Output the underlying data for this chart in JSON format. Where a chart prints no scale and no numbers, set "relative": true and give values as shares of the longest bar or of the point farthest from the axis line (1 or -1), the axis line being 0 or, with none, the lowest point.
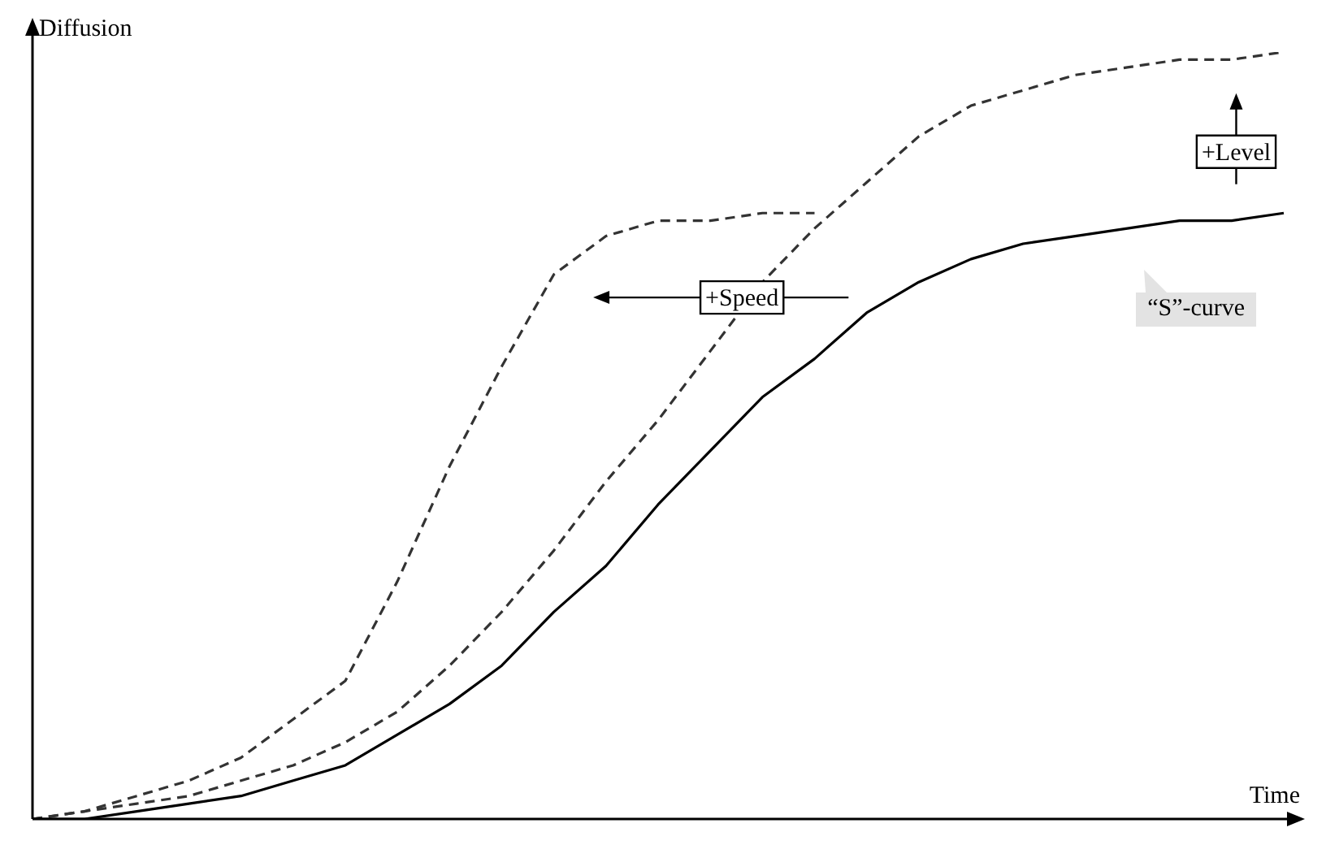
{
  "chart_data": {
    "type": "line",
    "relative": true,
    "xlabel": "Time",
    "ylabel": "Diffusion",
    "categories": [
      null,
      null,
      null,
      null,
      null,
      null,
      null,
      null,
      null,
      null,
      null,
      null,
      null,
      null,
      null,
      null,
      null,
      null,
      null,
      null,
      null,
      null,
      null,
      null,
      null
    ],
    "legend": false,
    "marker": "none",
    "series": [
      {
        "color": "#000000",
        "line_style": "solid",
        "values": [
          0,
          0,
          0.01,
          0.02,
          0.03,
          0.05,
          0.07,
          0.11,
          0.15,
          0.2,
          0.27,
          0.33,
          0.41,
          0.48,
          0.55,
          0.6,
          0.66,
          0.7,
          0.73,
          0.75,
          0.76,
          0.77,
          0.78,
          0.78,
          0.79
        ]
      },
      {
        "color": "#333333",
        "line_style": "dashed",
        "values": [
          0,
          0.01,
          0.03,
          0.05,
          0.08,
          0.13,
          0.18,
          0.31,
          0.46,
          0.59,
          0.71,
          0.76,
          0.78,
          0.78,
          0.79,
          0.79,
          null,
          null,
          null,
          null,
          null,
          null,
          null,
          null,
          null
        ]
      },
      {
        "color": "#333333",
        "line_style": "dashed",
        "values": [
          0,
          0.01,
          0.02,
          0.03,
          0.05,
          0.07,
          0.1,
          0.14,
          0.2,
          0.27,
          0.35,
          0.44,
          0.52,
          0.61,
          0.7,
          0.77,
          0.83,
          0.89,
          0.93,
          0.95,
          0.97,
          0.98,
          0.99,
          0.99,
          1
        ]
      }
    ],
    "annotations": [
      "+Speed",
      "+Level",
      "“S”-curve"
    ]
  }
}
